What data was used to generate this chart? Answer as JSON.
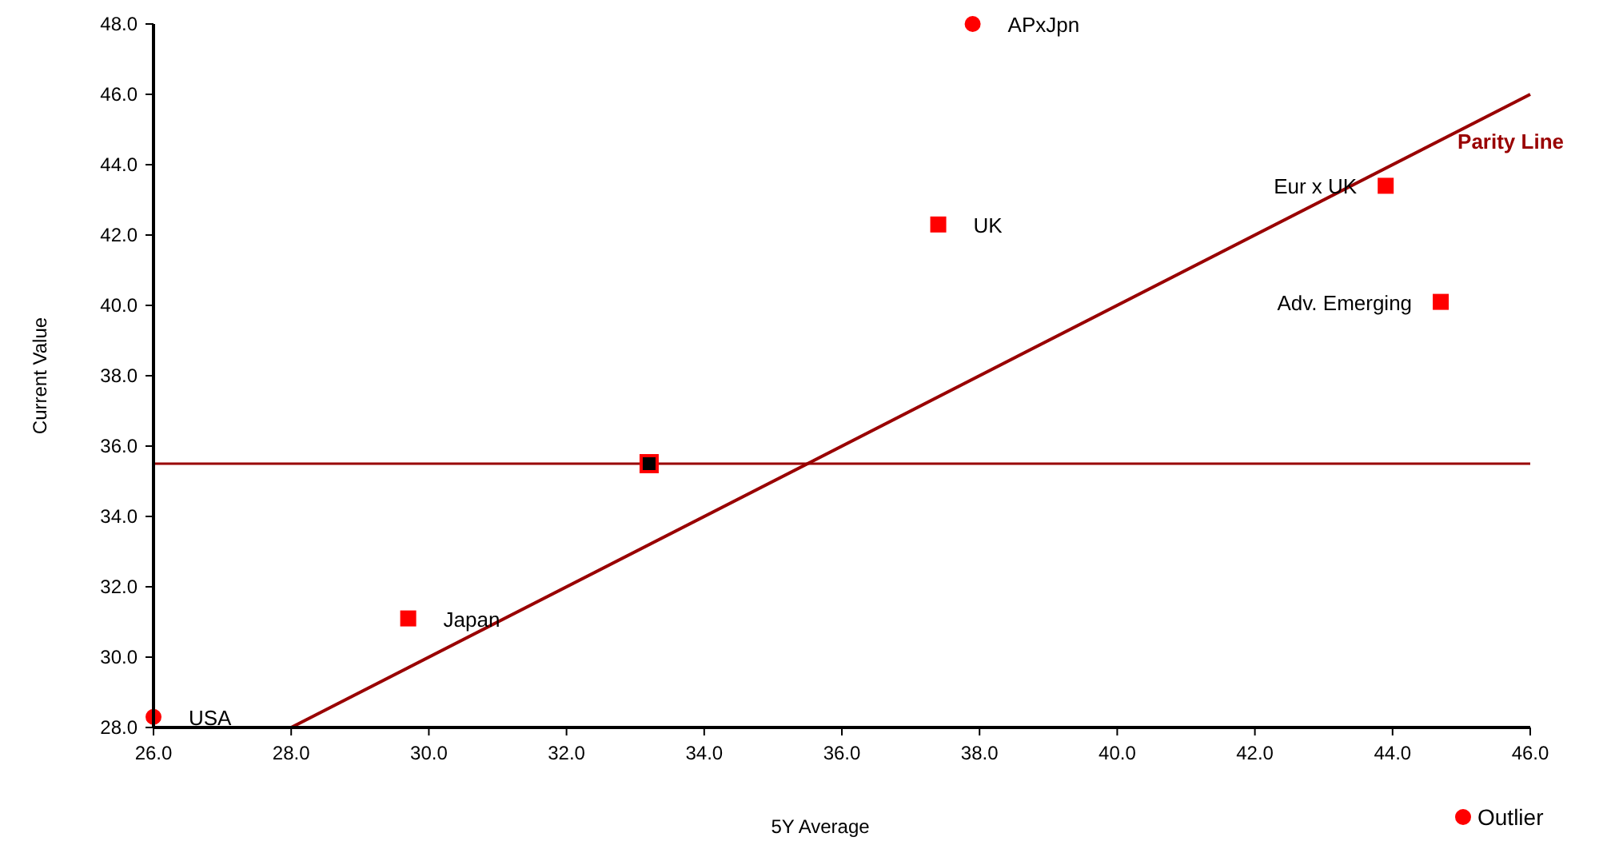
{
  "chart_data": {
    "type": "scatter",
    "xlabel": "5Y Average",
    "ylabel": "Current Value",
    "xlim": [
      26,
      46
    ],
    "ylim": [
      28,
      48
    ],
    "xticks": [
      {
        "value": 26,
        "label": "26.0"
      },
      {
        "value": 28,
        "label": "28.0"
      },
      {
        "value": 30,
        "label": "30.0"
      },
      {
        "value": 32,
        "label": "32.0"
      },
      {
        "value": 34,
        "label": "34.0"
      },
      {
        "value": 36,
        "label": "36.0"
      },
      {
        "value": 38,
        "label": "38.0"
      },
      {
        "value": 40,
        "label": "40.0"
      },
      {
        "value": 42,
        "label": "42.0"
      },
      {
        "value": 44,
        "label": "44.0"
      },
      {
        "value": 46,
        "label": "46.0"
      }
    ],
    "yticks": [
      {
        "value": 28,
        "label": "28.0"
      },
      {
        "value": 30,
        "label": "30.0"
      },
      {
        "value": 32,
        "label": "32.0"
      },
      {
        "value": 34,
        "label": "34.0"
      },
      {
        "value": 36,
        "label": "36.0"
      },
      {
        "value": 38,
        "label": "38.0"
      },
      {
        "value": 40,
        "label": "40.0"
      },
      {
        "value": 42,
        "label": "42.0"
      },
      {
        "value": 44,
        "label": "44.0"
      },
      {
        "value": 46,
        "label": "46.0"
      },
      {
        "value": 48,
        "label": "48.0"
      }
    ],
    "grid": false,
    "legend": "bottom right",
    "series": [
      {
        "type": "line",
        "name": "Parity Line",
        "color": "#990000",
        "x": [
          28,
          46
        ],
        "values": [
          28,
          46
        ],
        "marker": "none",
        "line_style": "solid"
      },
      {
        "color": "#ff0000",
        "x": [
          29.7,
          37.4,
          43.9,
          44.7
        ],
        "values": [
          31.1,
          42.3,
          43.4,
          40.1
        ],
        "marker": "square"
      },
      {
        "color": "#000000",
        "x": [
          33.2
        ],
        "values": [
          35.5
        ],
        "marker": "square"
      },
      {
        "name": "Outlier",
        "color": "#ff0000",
        "x": [
          26.0,
          37.9
        ],
        "values": [
          28.3,
          48.0
        ],
        "marker": "circle"
      }
    ],
    "ref_lines": [
      {
        "axis": "y",
        "value": 35.5,
        "color": "#990000"
      }
    ],
    "annotations": [
      {
        "text": "USA",
        "x": 26.0,
        "y": 28.3
      },
      {
        "text": "Japan",
        "x": 29.7,
        "y": 31.1
      },
      {
        "text": "UK",
        "x": 37.4,
        "y": 42.3
      },
      {
        "text": "APxJpn",
        "x": 37.9,
        "y": 48.0
      },
      {
        "text": "Eur x UK",
        "x": 43.9,
        "y": 43.4
      },
      {
        "text": "Adv. Emerging",
        "x": 44.7,
        "y": 40.1
      }
    ]
  }
}
